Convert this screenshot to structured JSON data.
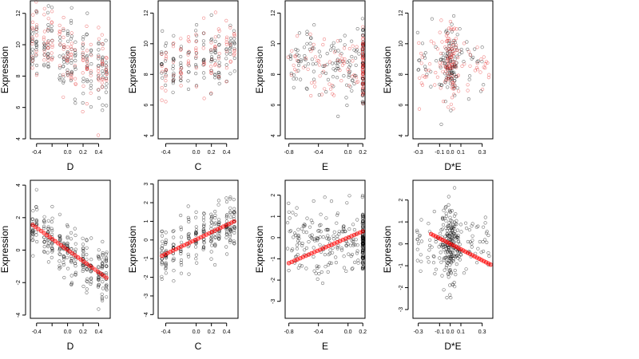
{
  "chart_data": [
    {
      "type": "scatter",
      "xlabel": "D",
      "ylabel": "Expression",
      "xlim": [
        -0.48,
        0.55
      ],
      "ylim": [
        4,
        12.8
      ],
      "xticks": [
        -0.4,
        -0.2,
        0.0,
        0.2,
        0.4
      ],
      "xticklabels": [
        "-0.4",
        "",
        "0.0",
        "0.2",
        "0.4"
      ],
      "yticks": [
        4,
        6,
        8,
        10,
        12
      ],
      "yticklabels": [
        "4",
        "6",
        "8",
        "10",
        "12"
      ],
      "cloud": {
        "kind": "linear",
        "x_levels": [
          -0.45,
          -0.4,
          -0.3,
          -0.25,
          -0.2,
          -0.1,
          -0.05,
          0.0,
          0.05,
          0.1,
          0.2,
          0.25,
          0.3,
          0.4,
          0.45,
          0.5
        ],
        "intercept": 9.3,
        "slope": -2.5,
        "spread": 1.2
      },
      "series": [
        {
          "color": "black",
          "style": "open"
        },
        {
          "color": "red",
          "style": "open-light"
        }
      ]
    },
    {
      "type": "scatter",
      "xlabel": "C",
      "ylabel": "Expression",
      "xlim": [
        -0.5,
        0.55
      ],
      "ylim": [
        3.8,
        12.8
      ],
      "xticks": [
        -0.4,
        0.0,
        0.2,
        0.4
      ],
      "xticklabels": [
        "-0.4",
        "0.0",
        "0.2",
        "0.4"
      ],
      "yticks": [
        4,
        6,
        8,
        10,
        12
      ],
      "yticklabels": [
        "4",
        "6",
        "8",
        "10",
        "12"
      ],
      "cloud": {
        "kind": "linear",
        "x_levels": [
          -0.45,
          -0.4,
          -0.3,
          -0.2,
          -0.1,
          0.0,
          0.1,
          0.2,
          0.25,
          0.3,
          0.4,
          0.45,
          0.5
        ],
        "intercept": 8.9,
        "slope": 1.6,
        "spread": 1.1
      },
      "series": [
        {
          "color": "black",
          "style": "open"
        },
        {
          "color": "red",
          "style": "open-light"
        }
      ]
    },
    {
      "type": "scatter",
      "xlabel": "E",
      "ylabel": "Expression",
      "xlim": [
        -0.85,
        0.23
      ],
      "ylim": [
        3.8,
        12.8
      ],
      "xticks": [
        -0.8,
        -0.4,
        0.0,
        0.2
      ],
      "xticklabels": [
        "-0.8",
        "-0.4",
        "0.0",
        "0.2"
      ],
      "yticks": [
        4,
        6,
        8,
        10,
        12
      ],
      "yticklabels": [
        "4",
        "6",
        "8",
        "10",
        "12"
      ],
      "cloud": {
        "kind": "stacked",
        "x_min": -0.82,
        "x_max": 0.15,
        "stack_x": 0.2,
        "y_center": 8.6,
        "spread": 1.3
      },
      "series": [
        {
          "color": "black",
          "style": "open"
        },
        {
          "color": "red",
          "style": "open-light"
        }
      ]
    },
    {
      "type": "scatter",
      "xlabel": "D*E",
      "ylabel": "Expression",
      "xlim": [
        -0.35,
        0.4
      ],
      "ylim": [
        3.8,
        12.8
      ],
      "xticks": [
        -0.3,
        -0.1,
        0.0,
        0.1,
        0.3
      ],
      "xticklabels": [
        "-0.3",
        "-0.1",
        "0.0",
        "0.1",
        "0.3"
      ],
      "yticks": [
        4,
        6,
        8,
        10,
        12
      ],
      "yticklabels": [
        "4",
        "6",
        "8",
        "10",
        "12"
      ],
      "cloud": {
        "kind": "cluster",
        "center": 0.0,
        "width": 0.04,
        "x_min": -0.32,
        "x_max": 0.38,
        "y_center": 8.8,
        "spread": 1.2
      },
      "series": [
        {
          "color": "black",
          "style": "open"
        },
        {
          "color": "red",
          "style": "open-light"
        }
      ]
    },
    {
      "type": "scatter",
      "xlabel": "D",
      "ylabel": "Expression",
      "xlim": [
        -0.48,
        0.55
      ],
      "ylim": [
        -4.2,
        4.3
      ],
      "xticks": [
        -0.4,
        -0.2,
        0.0,
        0.2,
        0.4
      ],
      "xticklabels": [
        "-0.4",
        "",
        "0.0",
        "0.2",
        "0.4"
      ],
      "yticks": [
        -4,
        -2,
        0,
        2,
        4
      ],
      "yticklabels": [
        "-4",
        "-2",
        "0",
        "2",
        "4"
      ],
      "cloud": {
        "kind": "linear",
        "x_levels": [
          -0.45,
          -0.4,
          -0.3,
          -0.25,
          -0.2,
          -0.1,
          -0.05,
          0.0,
          0.05,
          0.1,
          0.2,
          0.25,
          0.3,
          0.4,
          0.45,
          0.5
        ],
        "intercept": 0.0,
        "slope": -3.2,
        "spread": 0.75
      },
      "fit": {
        "x0": -0.45,
        "x1": 0.5,
        "y0": 1.55,
        "y1": -1.7
      },
      "series": [
        {
          "color": "black",
          "style": "open"
        },
        {
          "color": "red",
          "style": "fit-points"
        }
      ]
    },
    {
      "type": "scatter",
      "xlabel": "C",
      "ylabel": "Expression",
      "xlim": [
        -0.5,
        0.55
      ],
      "ylim": [
        -4.2,
        3.2
      ],
      "xticks": [
        -0.4,
        0.0,
        0.2,
        0.4
      ],
      "xticklabels": [
        "-0.4",
        "0.0",
        "0.2",
        "0.4"
      ],
      "yticks": [
        -4,
        -3,
        -2,
        -1,
        0,
        1,
        2,
        3
      ],
      "yticklabels": [
        "-4",
        "-3",
        "-2",
        "-1",
        "0",
        "1",
        "2",
        "3"
      ],
      "cloud": {
        "kind": "linear",
        "x_levels": [
          -0.45,
          -0.4,
          -0.3,
          -0.2,
          -0.1,
          0.0,
          0.1,
          0.2,
          0.25,
          0.3,
          0.4,
          0.45,
          0.5
        ],
        "intercept": 0.0,
        "slope": 1.9,
        "spread": 0.7
      },
      "fit": {
        "x0": -0.45,
        "x1": 0.5,
        "y0": -0.85,
        "y1": 1.0
      },
      "series": [
        {
          "color": "black",
          "style": "open"
        },
        {
          "color": "red",
          "style": "fit-points"
        }
      ]
    },
    {
      "type": "scatter",
      "xlabel": "E",
      "ylabel": "Expression",
      "xlim": [
        -0.85,
        0.23
      ],
      "ylim": [
        -3.8,
        2.7
      ],
      "xticks": [
        -0.8,
        -0.4,
        0.0,
        0.2
      ],
      "xticklabels": [
        "-0.8",
        "-0.4",
        "0.0",
        "0.2"
      ],
      "yticks": [
        -3,
        -2,
        -1,
        0,
        1,
        2
      ],
      "yticklabels": [
        "-3",
        "-2",
        "-1",
        "0",
        "1",
        "2"
      ],
      "cloud": {
        "kind": "stacked",
        "x_min": -0.82,
        "x_max": 0.15,
        "stack_x": 0.2,
        "y_center": -0.2,
        "spread": 0.85
      },
      "fit": {
        "x0": -0.8,
        "x1": 0.2,
        "y0": -1.2,
        "y1": 0.3
      },
      "series": [
        {
          "color": "black",
          "style": "open"
        },
        {
          "color": "red",
          "style": "fit-points"
        }
      ]
    },
    {
      "type": "scatter",
      "xlabel": "D*E",
      "ylabel": "Expression",
      "xlim": [
        -0.35,
        0.4
      ],
      "ylim": [
        -3.4,
        2.9
      ],
      "xticks": [
        -0.3,
        -0.1,
        0.0,
        0.1,
        0.3
      ],
      "xticklabels": [
        "-0.3",
        "-0.1",
        "0.0",
        "0.1",
        "0.3"
      ],
      "yticks": [
        -3,
        -2,
        -1,
        0,
        1,
        2
      ],
      "yticklabels": [
        "-3",
        "-2",
        "-1",
        "0",
        "1",
        "2"
      ],
      "cloud": {
        "kind": "cluster",
        "center": 0.0,
        "width": 0.04,
        "x_min": -0.32,
        "x_max": 0.38,
        "y_center": 0.0,
        "spread": 0.8
      },
      "fit": {
        "x0": -0.18,
        "x1": 0.38,
        "y0": 0.45,
        "y1": -0.95
      },
      "series": [
        {
          "color": "black",
          "style": "open"
        },
        {
          "color": "red",
          "style": "fit-points"
        }
      ]
    }
  ]
}
